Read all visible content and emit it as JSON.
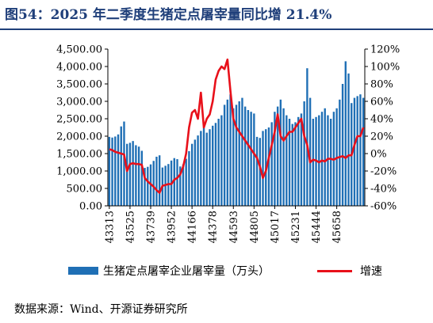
{
  "title": "图54：2025 年二季度生猪定点屠宰量同比增 21.4%",
  "source": "数据来源：Wind、开源证券研究所",
  "colors": {
    "bar": "#1f6fb5",
    "line": "#e8101a",
    "title": "#1f3f7a"
  },
  "chart_data": {
    "type": "bar",
    "title": "图54：2025 年二季度生猪定点屠宰量同比增 21.4%",
    "left_axis": {
      "ylim": [
        0,
        4500
      ],
      "ticks": [
        "4,500.00",
        "4,000.00",
        "3,500.00",
        "3,000.00",
        "2,500.00",
        "2,000.00",
        "1,500.00",
        "1,000.00",
        "500.00",
        "0.00"
      ]
    },
    "right_axis": {
      "ylim": [
        -60,
        120
      ],
      "ticks": [
        "120%",
        "100%",
        "80%",
        "60%",
        "40%",
        "20%",
        "0%",
        "-20%",
        "-40%",
        "-60%"
      ]
    },
    "x_tick_labels": [
      "43313",
      "43525",
      "43739",
      "43952",
      "44166",
      "44378",
      "44593",
      "44805",
      "45017",
      "45231",
      "45444",
      "45658"
    ],
    "legend_placement": "bottom",
    "series": [
      {
        "name": "生猪定点屠宰企业屠宰量（万头）",
        "kind": "bar",
        "axis": "left",
        "values": [
          1980,
          1960,
          1990,
          2050,
          2280,
          2420,
          1780,
          1810,
          1860,
          1740,
          1700,
          1580,
          1090,
          1120,
          1190,
          1290,
          1410,
          1450,
          1100,
          1150,
          1200,
          1300,
          1370,
          1340,
          1130,
          1190,
          1350,
          1570,
          1780,
          1900,
          2020,
          2150,
          2250,
          2100,
          2200,
          2300,
          2380,
          2500,
          2600,
          2900,
          3050,
          3200,
          2800,
          2900,
          3000,
          3100,
          2850,
          2750,
          2700,
          2650,
          1980,
          1950,
          2150,
          2200,
          2250,
          2400,
          2700,
          2850,
          3050,
          2800,
          2600,
          2500,
          2350,
          2400,
          2550,
          2650,
          3000,
          3950,
          3100,
          2500,
          2550,
          2600,
          2700,
          2800,
          2600,
          2500,
          2700,
          2800,
          3050,
          3500,
          4150,
          3800,
          2950,
          3100,
          3150,
          3200,
          3100
        ],
        "x_start": 43313,
        "x_step_months": 1
      },
      {
        "name": "增速",
        "kind": "line",
        "axis": "right",
        "values": [
          5,
          4,
          2,
          1,
          0,
          -1,
          -20,
          -12,
          -11,
          -12,
          -12,
          -13,
          -28,
          -32,
          -35,
          -38,
          -42,
          -45,
          -37,
          -36,
          -35,
          -35,
          -30,
          -28,
          -24,
          -15,
          0,
          30,
          47,
          50,
          40,
          70,
          30,
          40,
          45,
          60,
          85,
          95,
          100,
          97,
          108,
          72,
          40,
          30,
          25,
          20,
          15,
          10,
          5,
          0,
          -5,
          -15,
          -28,
          -20,
          -5,
          10,
          25,
          45,
          20,
          15,
          20,
          25,
          25,
          30,
          35,
          40,
          20,
          10,
          -10,
          -7,
          -8,
          -10,
          -8,
          -9,
          -6,
          -6,
          -7,
          -5,
          -4,
          -3,
          -5,
          -2,
          -2,
          10,
          20,
          20,
          30
        ],
        "x_start": 43313,
        "x_step_months": 1
      }
    ]
  }
}
